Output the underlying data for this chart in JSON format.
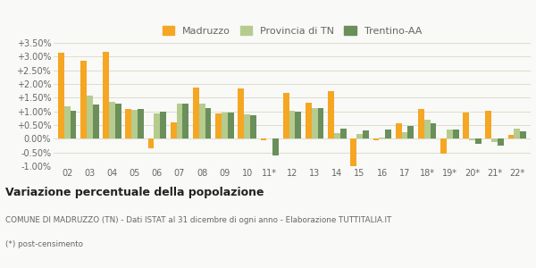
{
  "categories": [
    "02",
    "03",
    "04",
    "05",
    "06",
    "07",
    "08",
    "09",
    "10",
    "11*",
    "12",
    "13",
    "14",
    "15",
    "16",
    "17",
    "18*",
    "19*",
    "20*",
    "21*",
    "22*"
  ],
  "madruzzo": [
    0.0313,
    0.0285,
    0.0317,
    0.0108,
    -0.0035,
    0.006,
    0.0188,
    0.0093,
    0.0185,
    -0.0005,
    0.0168,
    0.0133,
    0.0173,
    -0.0102,
    -0.0005,
    0.0057,
    0.0108,
    -0.0053,
    0.0095,
    0.0102,
    0.0013
  ],
  "provincia": [
    0.012,
    0.0157,
    0.0135,
    0.0105,
    0.0093,
    0.0127,
    0.0127,
    0.0097,
    0.009,
    0.0,
    0.0102,
    0.0113,
    0.0022,
    0.0017,
    0.0005,
    0.0023,
    0.0068,
    0.0033,
    -0.0005,
    -0.0012,
    0.0038
  ],
  "trentino": [
    0.0103,
    0.0125,
    0.0127,
    0.0108,
    0.01,
    0.0127,
    0.0113,
    0.0095,
    0.0085,
    -0.0062,
    0.01,
    0.0113,
    0.0038,
    0.003,
    0.0035,
    0.0047,
    0.0058,
    0.0035,
    -0.0018,
    -0.0025,
    0.0027
  ],
  "color_madruzzo": "#f5a623",
  "color_provincia": "#b5cc8e",
  "color_trentino": "#6a8f5a",
  "ylim_min": -0.01,
  "ylim_max": 0.035,
  "yticks": [
    -0.01,
    -0.005,
    0.0,
    0.005,
    0.01,
    0.015,
    0.02,
    0.025,
    0.03,
    0.035
  ],
  "ytick_labels": [
    "-1.00%",
    "-0.50%",
    "0.00%",
    "+0.50%",
    "+1.00%",
    "+1.50%",
    "+2.00%",
    "+2.50%",
    "+3.00%",
    "+3.50%"
  ],
  "title_bold": "Variazione percentuale della popolazione",
  "subtitle": "COMUNE DI MADRUZZO (TN) - Dati ISTAT al 31 dicembre di ogni anno - Elaborazione TUTTITALIA.IT",
  "footnote": "(*) post-censimento",
  "bg_color": "#f9f9f7",
  "grid_color": "#ddddcc",
  "text_color": "#666666",
  "title_color": "#222222",
  "label_madruzzo": "Madruzzo",
  "label_provincia": "Provincia di TN",
  "label_trentino": "Trentino-AA"
}
